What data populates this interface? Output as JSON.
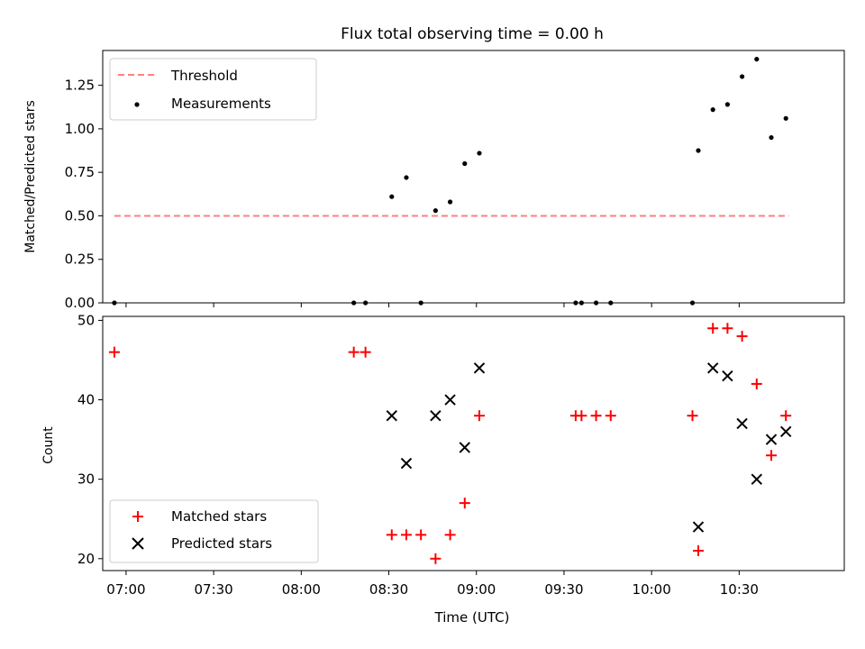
{
  "chart_data": [
    {
      "type": "scatter",
      "title": "Flux total observing time = 0.00 h",
      "ylabel": "Matched/Predicted stars",
      "xlabel": "",
      "xlim": [
        "06:52",
        "11:06"
      ],
      "ylim": [
        0,
        1.45
      ],
      "yticks": [
        0.0,
        0.25,
        0.5,
        0.75,
        1.0,
        1.25
      ],
      "ytick_labels": [
        "0.00",
        "0.25",
        "0.50",
        "0.75",
        "1.00",
        "1.25"
      ],
      "xticks": [
        "07:00",
        "07:30",
        "08:00",
        "08:30",
        "09:00",
        "09:30",
        "10:00",
        "10:30"
      ],
      "xtick_labels_shown": false,
      "grid": false,
      "legend": {
        "placement": "upper left",
        "entries": [
          "Threshold",
          "Measurements"
        ]
      },
      "threshold": {
        "name": "Threshold",
        "value": 0.5,
        "x_range": [
          "06:56",
          "10:47"
        ],
        "style": "dashed",
        "color": "#ff7f7f"
      },
      "series": [
        {
          "name": "Measurements",
          "color": "#000000",
          "marker": "dot",
          "points": [
            {
              "x": "06:56",
              "y": 0.0
            },
            {
              "x": "08:18",
              "y": 0.0
            },
            {
              "x": "08:22",
              "y": 0.0
            },
            {
              "x": "08:31",
              "y": 0.61
            },
            {
              "x": "08:36",
              "y": 0.72
            },
            {
              "x": "08:41",
              "y": 0.0
            },
            {
              "x": "08:46",
              "y": 0.53
            },
            {
              "x": "08:51",
              "y": 0.58
            },
            {
              "x": "08:56",
              "y": 0.8
            },
            {
              "x": "09:01",
              "y": 0.86
            },
            {
              "x": "09:34",
              "y": 0.0
            },
            {
              "x": "09:36",
              "y": 0.0
            },
            {
              "x": "09:41",
              "y": 0.0
            },
            {
              "x": "09:46",
              "y": 0.0
            },
            {
              "x": "10:14",
              "y": 0.0
            },
            {
              "x": "10:16",
              "y": 0.875
            },
            {
              "x": "10:21",
              "y": 1.11
            },
            {
              "x": "10:26",
              "y": 1.14
            },
            {
              "x": "10:31",
              "y": 1.3
            },
            {
              "x": "10:36",
              "y": 1.4
            },
            {
              "x": "10:41",
              "y": 0.95
            },
            {
              "x": "10:46",
              "y": 1.06
            }
          ]
        }
      ]
    },
    {
      "type": "scatter",
      "title": "",
      "ylabel": "Count",
      "xlabel": "Time (UTC)",
      "xlim": [
        "06:52",
        "11:06"
      ],
      "ylim": [
        18.5,
        50.5
      ],
      "yticks": [
        20,
        30,
        40,
        50
      ],
      "ytick_labels": [
        "20",
        "30",
        "40",
        "50"
      ],
      "xticks": [
        "07:00",
        "07:30",
        "08:00",
        "08:30",
        "09:00",
        "09:30",
        "10:00",
        "10:30"
      ],
      "xtick_labels": [
        "07:00",
        "07:30",
        "08:00",
        "08:30",
        "09:00",
        "09:30",
        "10:00",
        "10:30"
      ],
      "grid": false,
      "legend": {
        "placement": "lower left",
        "entries": [
          "Matched stars",
          "Predicted stars"
        ]
      },
      "series": [
        {
          "name": "Matched stars",
          "color": "#ff0000",
          "marker": "plus",
          "points": [
            {
              "x": "06:56",
              "y": 46
            },
            {
              "x": "08:18",
              "y": 46
            },
            {
              "x": "08:22",
              "y": 46
            },
            {
              "x": "08:31",
              "y": 23
            },
            {
              "x": "08:36",
              "y": 23
            },
            {
              "x": "08:41",
              "y": 23
            },
            {
              "x": "08:46",
              "y": 20
            },
            {
              "x": "08:51",
              "y": 23
            },
            {
              "x": "08:56",
              "y": 27
            },
            {
              "x": "09:01",
              "y": 38
            },
            {
              "x": "09:34",
              "y": 38
            },
            {
              "x": "09:36",
              "y": 38
            },
            {
              "x": "09:41",
              "y": 38
            },
            {
              "x": "09:46",
              "y": 38
            },
            {
              "x": "10:14",
              "y": 38
            },
            {
              "x": "10:16",
              "y": 21
            },
            {
              "x": "10:21",
              "y": 49
            },
            {
              "x": "10:26",
              "y": 49
            },
            {
              "x": "10:31",
              "y": 48
            },
            {
              "x": "10:36",
              "y": 42
            },
            {
              "x": "10:41",
              "y": 33
            },
            {
              "x": "10:46",
              "y": 38
            }
          ]
        },
        {
          "name": "Predicted stars",
          "color": "#000000",
          "marker": "x",
          "points": [
            {
              "x": "08:31",
              "y": 38
            },
            {
              "x": "08:36",
              "y": 32
            },
            {
              "x": "08:46",
              "y": 38
            },
            {
              "x": "08:51",
              "y": 40
            },
            {
              "x": "08:56",
              "y": 34
            },
            {
              "x": "09:01",
              "y": 44
            },
            {
              "x": "10:16",
              "y": 24
            },
            {
              "x": "10:21",
              "y": 44
            },
            {
              "x": "10:26",
              "y": 43
            },
            {
              "x": "10:31",
              "y": 37
            },
            {
              "x": "10:36",
              "y": 30
            },
            {
              "x": "10:41",
              "y": 35
            },
            {
              "x": "10:46",
              "y": 36
            }
          ]
        }
      ]
    }
  ]
}
